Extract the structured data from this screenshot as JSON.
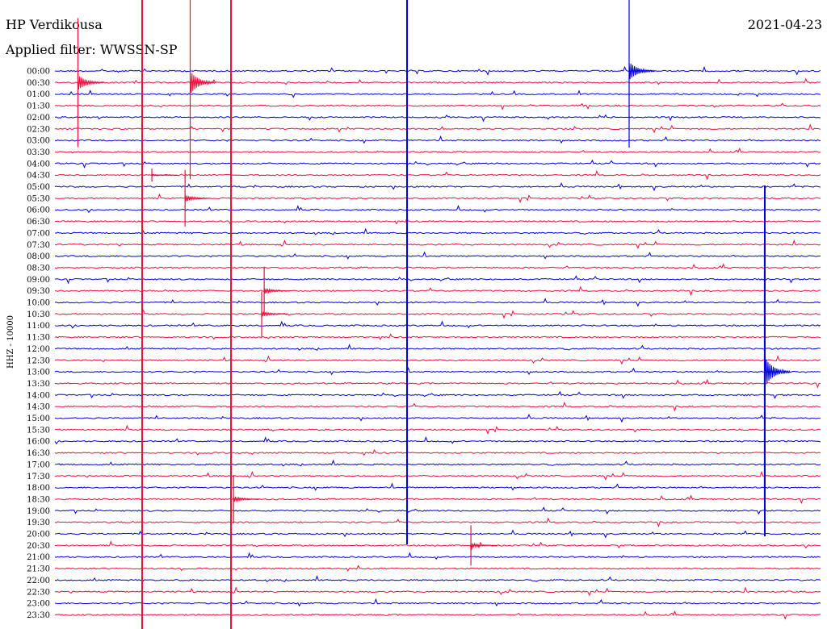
{
  "header": {
    "station": "HP Verdikousa",
    "filter": "Applied filter: WWSSN-SP",
    "date": "2021-04-23"
  },
  "chart_data": {
    "type": "line",
    "title": "HP Verdikousa",
    "subtitle": "Applied filter: WWSSN-SP",
    "date": "2021-04-23",
    "ylabel": "HHZ - 10000",
    "row_labels": [
      "00:00",
      "00:30",
      "01:00",
      "01:30",
      "02:00",
      "02:30",
      "03:00",
      "03:30",
      "04:00",
      "04:30",
      "05:00",
      "05:30",
      "06:00",
      "06:30",
      "07:00",
      "07:30",
      "08:00",
      "08:30",
      "09:00",
      "09:30",
      "10:00",
      "10:30",
      "11:00",
      "11:30",
      "12:00",
      "12:30",
      "13:00",
      "13:30",
      "14:00",
      "14:30",
      "15:00",
      "15:30",
      "16:00",
      "16:30",
      "17:00",
      "17:30",
      "18:00",
      "18:30",
      "19:00",
      "19:30",
      "20:00",
      "20:30",
      "21:00",
      "21:30",
      "22:00",
      "22:30",
      "23:00",
      "23:30"
    ],
    "colors": [
      "#0000dd",
      "#ee0f3c"
    ],
    "row_minutes": 30,
    "events": [
      {
        "t": "00:30",
        "x_min": 0.9,
        "amp": 80,
        "color": "#ee0f3c"
      },
      {
        "t": "00:30",
        "x_min": 5.3,
        "amp": 120,
        "color": "#ee0f3c"
      },
      {
        "t": "00:00",
        "x_min": 22.5,
        "amp": 95,
        "color": "#0000dd"
      },
      {
        "t": "04:30",
        "x_min": 3.8,
        "amp": 8,
        "color": "#ee0f3c"
      },
      {
        "t": "05:30",
        "x_min": 5.1,
        "amp": 35,
        "color": "#ee0f3c"
      },
      {
        "t": "09:30",
        "x_min": 8.2,
        "amp": 30,
        "color": "#ee0f3c"
      },
      {
        "t": "10:30",
        "x_min": 8.1,
        "amp": 28,
        "color": "#ee0f3c"
      },
      {
        "t": "13:00",
        "x_min": 27.8,
        "amp": 160,
        "color": "#0000dd"
      },
      {
        "t": "18:30",
        "x_min": 7.0,
        "amp": 30,
        "color": "#ee0f3c"
      },
      {
        "t": "20:30",
        "x_min": 16.3,
        "amp": 25,
        "color": "#ee0f3c"
      }
    ]
  }
}
